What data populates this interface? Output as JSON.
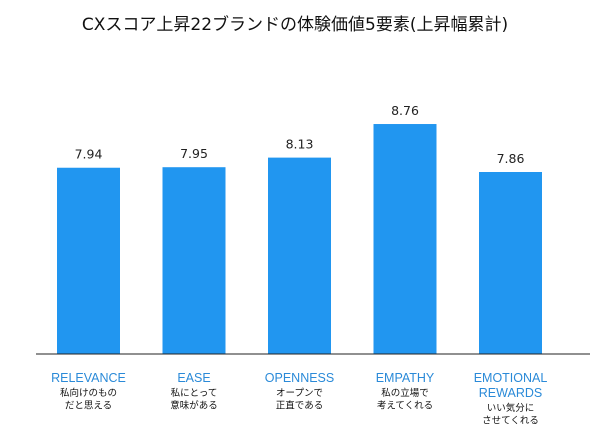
{
  "chart_data": {
    "type": "bar",
    "title": "CXスコア上昇22ブランドの体験価値5要素(上昇幅累計)",
    "categories": [
      {
        "label_en": [
          "RELEVANCE"
        ],
        "label_ja": [
          "私向けのもの",
          "だと思える"
        ]
      },
      {
        "label_en": [
          "EASE"
        ],
        "label_ja": [
          "私にとって",
          "意味がある"
        ]
      },
      {
        "label_en": [
          "OPENNESS"
        ],
        "label_ja": [
          "オープンで",
          "正直である"
        ]
      },
      {
        "label_en": [
          "EMPATHY"
        ],
        "label_ja": [
          "私の立場で",
          "考えてくれる"
        ]
      },
      {
        "label_en": [
          "EMOTIONAL",
          "REWARDS"
        ],
        "label_ja": [
          "いい気分に",
          "させてくれる"
        ]
      }
    ],
    "values": [
      7.94,
      7.95,
      8.13,
      8.76,
      7.86
    ],
    "value_labels": [
      "7.94",
      "7.95",
      "8.13",
      "8.76",
      "7.86"
    ],
    "xlabel": "",
    "ylabel": "",
    "ylim": [
      0,
      10
    ],
    "grid": false,
    "legend": "none",
    "bar_color": "#2196f0",
    "category_label_color": "#2a8ad8"
  }
}
